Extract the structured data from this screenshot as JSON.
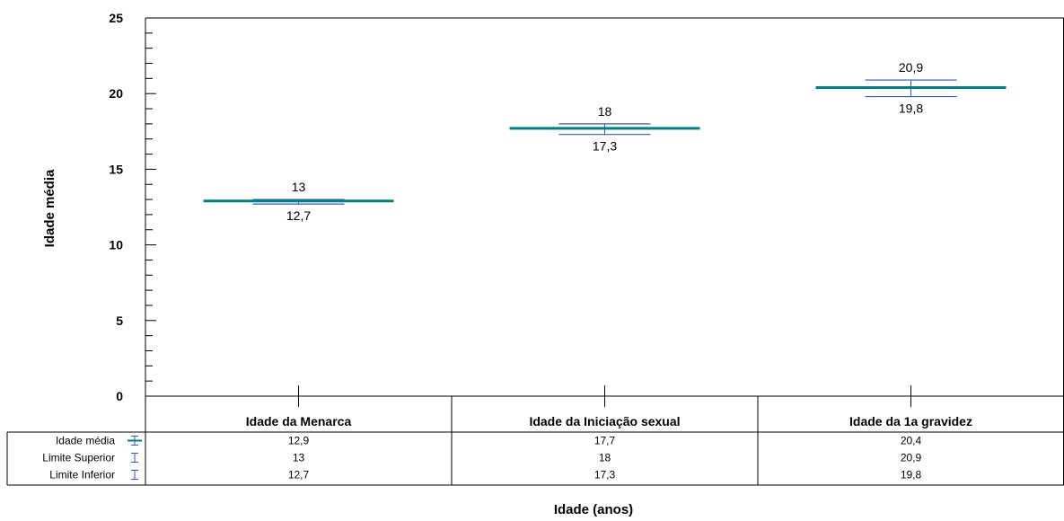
{
  "chart_data": {
    "type": "errorbar",
    "categories": [
      "Idade da Menarca",
      "Idade da Iniciação sexual",
      "Idade da 1a gravidez"
    ],
    "series": [
      {
        "name": "Idade média",
        "values": [
          12.9,
          17.7,
          20.4
        ],
        "color": "#008080"
      },
      {
        "name": "Limite Superior",
        "values": [
          13,
          18,
          20.9
        ],
        "color": "#3355cc"
      },
      {
        "name": "Limite Inferior",
        "values": [
          12.7,
          17.3,
          19.8
        ],
        "color": "#3355cc"
      }
    ],
    "upper_labels": [
      "13",
      "18",
      "20,9"
    ],
    "lower_labels": [
      "12,7",
      "17,3",
      "19,8"
    ],
    "table": [
      {
        "label": "Idade média",
        "values": [
          "12,9",
          "17,7",
          "20,4"
        ]
      },
      {
        "label": "Limite Superior",
        "values": [
          "13",
          "18",
          "20,9"
        ]
      },
      {
        "label": "Limite Inferior",
        "values": [
          "12,7",
          "17,3",
          "19,8"
        ]
      }
    ],
    "ylabel": "Idade média",
    "xlabel": "Idade (anos)",
    "ylim": [
      0,
      25
    ],
    "yticks": [
      0,
      5,
      10,
      15,
      20,
      25
    ],
    "legend": "data-table"
  }
}
